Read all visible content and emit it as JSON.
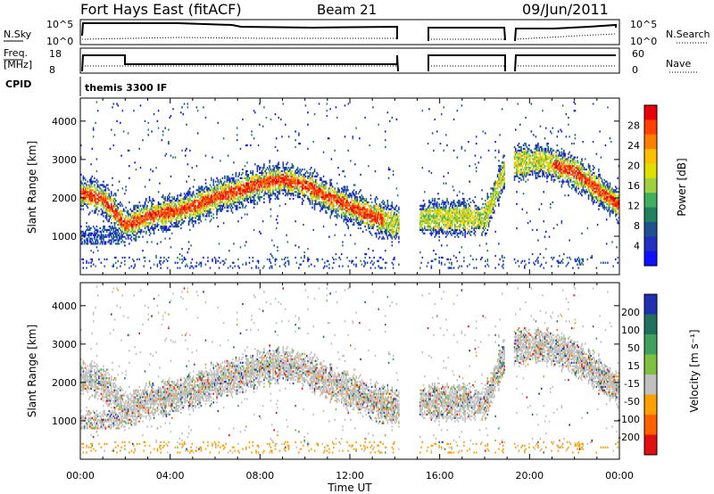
{
  "header": {
    "site": "Fort Hays East (fitACF)",
    "beam": "Beam 21",
    "date": "09/Jun/2011"
  },
  "top_panels": {
    "nsky_label": "N.Sky",
    "nsearch_label": "N.Search",
    "nsky_ticks": [
      "10^5",
      "10^0"
    ],
    "nsearch_ticks": [
      "10^5",
      "10^0"
    ],
    "freq_label": "Freq.",
    "freq_unit": "[MHz]",
    "freq_ticks": [
      "18",
      "8"
    ],
    "nave_label": "Nave",
    "nave_ticks": [
      "60",
      "0"
    ],
    "cpid_label": "CPID",
    "cpid_text": "themis 3300 IF"
  },
  "chart_data": [
    {
      "type": "heatmap",
      "name": "power",
      "ylabel": "Slant Range [km]",
      "ylim": [
        0,
        4600
      ],
      "yticks": [
        1000,
        2000,
        3000,
        4000
      ],
      "xlim": [
        0,
        24
      ],
      "colorbar": {
        "label": "Power [dB]",
        "ticks": [
          "28",
          "24",
          "20",
          "16",
          "12",
          "8",
          "4"
        ],
        "colors": [
          "#e8000b",
          "#ff4000",
          "#ff8000",
          "#ffc000",
          "#e0e000",
          "#a0d040",
          "#40b060",
          "#208060",
          "#205090",
          "#2030c0",
          "#1010ff"
        ]
      },
      "echo_band": [
        {
          "t": 0.0,
          "r": 2150
        },
        {
          "t": 1.0,
          "r": 2000
        },
        {
          "t": 2.0,
          "r": 1300
        },
        {
          "t": 3.0,
          "r": 1550
        },
        {
          "t": 4.0,
          "r": 1650
        },
        {
          "t": 5.0,
          "r": 1800
        },
        {
          "t": 6.0,
          "r": 2050
        },
        {
          "t": 7.0,
          "r": 2200
        },
        {
          "t": 8.0,
          "r": 2400
        },
        {
          "t": 9.0,
          "r": 2500
        },
        {
          "t": 10.0,
          "r": 2350
        },
        {
          "t": 11.0,
          "r": 2050
        },
        {
          "t": 12.0,
          "r": 1800
        },
        {
          "t": 13.0,
          "r": 1550
        },
        {
          "t": 14.0,
          "r": 1350
        },
        {
          "t": 15.5,
          "r": 1500
        },
        {
          "t": 16.5,
          "r": 1500
        },
        {
          "t": 18.0,
          "r": 1500
        },
        {
          "t": 19.0,
          "r": 2900
        },
        {
          "t": 20.5,
          "r": 3000
        },
        {
          "t": 22.0,
          "r": 2700
        },
        {
          "t": 24.0,
          "r": 1800
        }
      ]
    },
    {
      "type": "heatmap",
      "name": "velocity",
      "ylabel": "Slant Range [km]",
      "ylim": [
        0,
        4600
      ],
      "yticks": [
        1000,
        2000,
        3000,
        4000
      ],
      "xlim": [
        0,
        24
      ],
      "xlabel": "Time UT",
      "xticks": [
        "00:00",
        "04:00",
        "08:00",
        "12:00",
        "16:00",
        "20:00",
        "00:00"
      ],
      "colorbar": {
        "label": "Velocity [m s⁻¹]",
        "ticks": [
          "200",
          "100",
          "50",
          "15",
          "-15",
          "-50",
          "-100",
          "-200"
        ],
        "colors": [
          "#2030b0",
          "#207060",
          "#40a060",
          "#80c040",
          "#c0c0c0",
          "#ffa000",
          "#ff6000",
          "#e01010"
        ]
      }
    }
  ],
  "gaps": [
    [
      14.2,
      15.1
    ],
    [
      18.9,
      19.3
    ]
  ]
}
